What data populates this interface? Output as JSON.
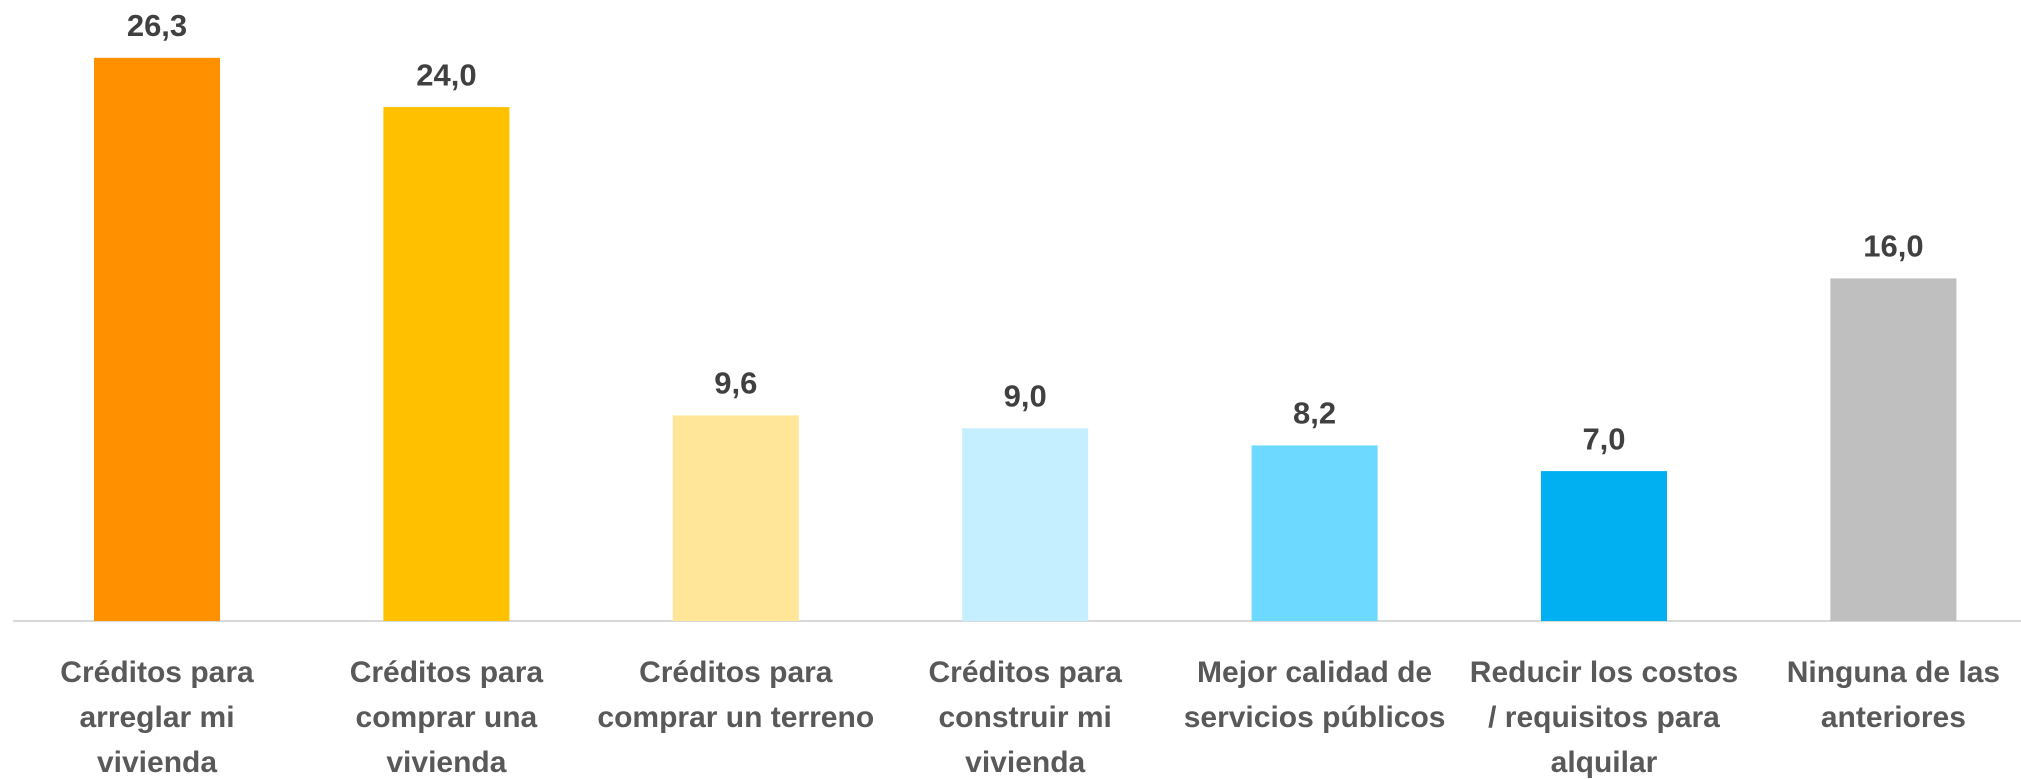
{
  "chart_data": {
    "type": "bar",
    "categories": [
      "Créditos para arreglar mi vivienda",
      "Créditos para comprar una vivienda",
      "Créditos para comprar un terreno",
      "Créditos para construir mi vivienda",
      "Mejor calidad de servicios públicos",
      "Reducir los costos / requisitos para alquilar",
      "Ninguna de las anteriores"
    ],
    "values": [
      26.3,
      24.0,
      9.6,
      9.0,
      8.2,
      7.0,
      16.0
    ],
    "value_labels": [
      "26,3",
      "24,0",
      "9,6",
      "9,0",
      "8,2",
      "7,0",
      "16,0"
    ],
    "colors": [
      "#FF9000",
      "#FFC000",
      "#FFE699",
      "#C5EEFF",
      "#6DD9FF",
      "#00B0F0",
      "#BFBFBF"
    ],
    "ylim": [
      0,
      29
    ]
  }
}
